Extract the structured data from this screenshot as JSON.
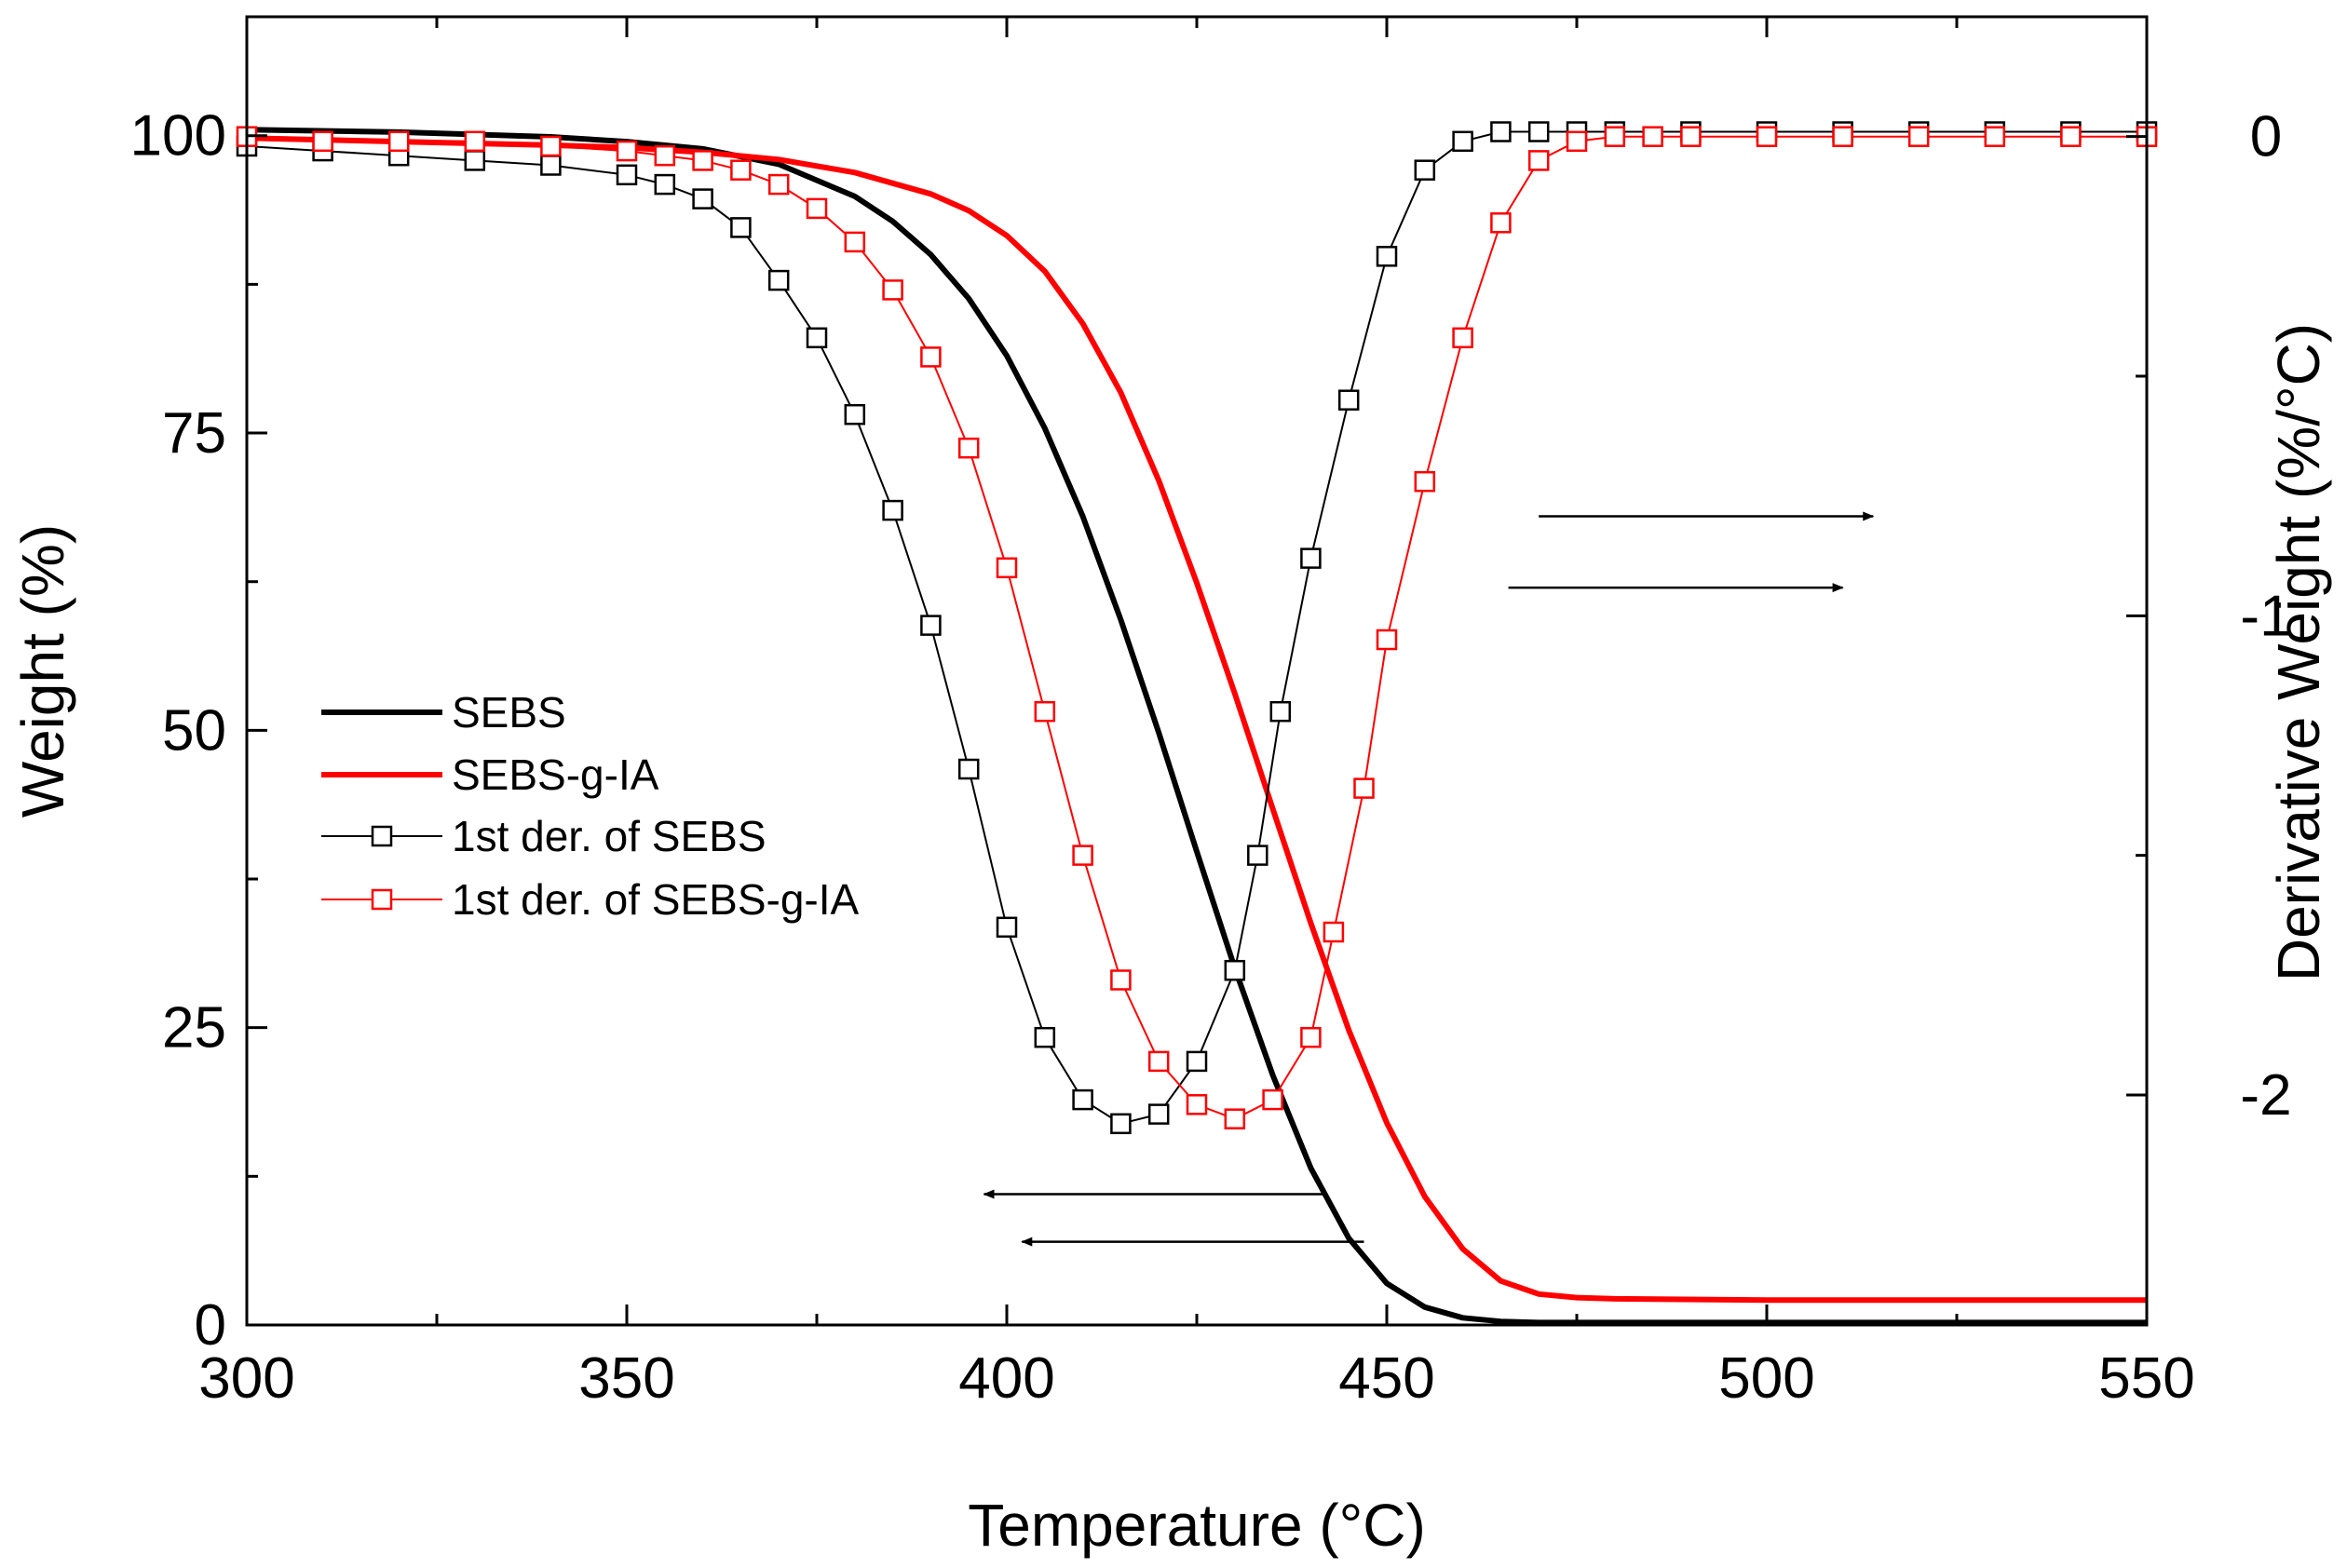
{
  "chart_data": {
    "type": "line",
    "xlabel": "Temperature (°C)",
    "ylabel": "Weight (%)",
    "y2label": "Derivative Weight (%/°C)",
    "xlim": [
      300,
      550
    ],
    "ylim": [
      0,
      110
    ],
    "y2lim": [
      -2.48,
      0.25
    ],
    "x_ticks": [
      "300",
      "350",
      "400",
      "450",
      "500",
      "550"
    ],
    "y_ticks": [
      "0",
      "25",
      "50",
      "75",
      "100"
    ],
    "y2_ticks": [
      "-2",
      "-1",
      "0"
    ],
    "x_tick_values": [
      300,
      350,
      400,
      450,
      500,
      550
    ],
    "y_tick_values": [
      0,
      25,
      50,
      75,
      100
    ],
    "y2_tick_values": [
      -2,
      -1,
      0
    ],
    "legend_position": "center-left",
    "colors": {
      "SEBS": "#000000",
      "SEBS-g-IA": "#ff0000"
    },
    "legend": [
      "SEBS",
      "SEBS-g-IA",
      "1st der. of SEBS",
      "1st der. of SEBS-g-IA"
    ],
    "series": [
      {
        "name": "SEBS",
        "axis": "left",
        "style": "line",
        "color": "#000000",
        "x": [
          300,
          320,
          340,
          350,
          360,
          370,
          380,
          385,
          390,
          395,
          400,
          405,
          410,
          415,
          420,
          425,
          430,
          435,
          440,
          445,
          450,
          455,
          460,
          465,
          470,
          480,
          500,
          550
        ],
        "y": [
          100.5,
          100.3,
          99.9,
          99.5,
          98.9,
          97.6,
          94.9,
          92.8,
          90.0,
          86.3,
          81.5,
          75.4,
          68.0,
          59.3,
          49.8,
          39.8,
          30.0,
          21.0,
          13.2,
          7.3,
          3.5,
          1.5,
          0.6,
          0.3,
          0.2,
          0.2,
          0.2,
          0.2
        ]
      },
      {
        "name": "SEBS-g-IA",
        "axis": "left",
        "style": "line",
        "color": "#ff0000",
        "x": [
          300,
          320,
          340,
          350,
          360,
          370,
          380,
          390,
          395,
          400,
          405,
          410,
          415,
          420,
          425,
          430,
          435,
          440,
          445,
          450,
          455,
          460,
          465,
          470,
          475,
          480,
          500,
          550
        ],
        "y": [
          99.8,
          99.5,
          99.2,
          99.0,
          98.6,
          98.0,
          96.9,
          95.1,
          93.7,
          91.6,
          88.6,
          84.2,
          78.4,
          71.0,
          62.4,
          53.1,
          43.4,
          33.8,
          24.8,
          17.0,
          10.8,
          6.4,
          3.7,
          2.6,
          2.3,
          2.2,
          2.1,
          2.1
        ]
      },
      {
        "name": "1st der. of SEBS",
        "axis": "right",
        "style": "markers-line",
        "marker": "open-square",
        "color": "#000000",
        "x": [
          300,
          310,
          320,
          330,
          340,
          350,
          355,
          360,
          365,
          370,
          375,
          380,
          385,
          390,
          395,
          400,
          405,
          410,
          415,
          420,
          425,
          430,
          433,
          436,
          440,
          445,
          450,
          455,
          460,
          465,
          470,
          475,
          480,
          490,
          500,
          510,
          520,
          530,
          540,
          550
        ],
        "y": [
          -0.02,
          -0.03,
          -0.04,
          -0.05,
          -0.06,
          -0.08,
          -0.1,
          -0.13,
          -0.19,
          -0.3,
          -0.42,
          -0.58,
          -0.78,
          -1.02,
          -1.32,
          -1.65,
          -1.88,
          -2.01,
          -2.06,
          -2.04,
          -1.93,
          -1.74,
          -1.5,
          -1.2,
          -0.88,
          -0.55,
          -0.25,
          -0.07,
          -0.01,
          0.01,
          0.01,
          0.01,
          0.01,
          0.01,
          0.01,
          0.01,
          0.01,
          0.01,
          0.01,
          0.01
        ]
      },
      {
        "name": "1st der. of SEBS-g-IA",
        "axis": "right",
        "style": "markers-line",
        "marker": "open-square",
        "color": "#ff0000",
        "x": [
          300,
          310,
          320,
          330,
          340,
          350,
          355,
          360,
          365,
          370,
          375,
          380,
          385,
          390,
          395,
          400,
          405,
          410,
          415,
          420,
          425,
          430,
          435,
          440,
          443,
          447,
          450,
          455,
          460,
          465,
          470,
          475,
          480,
          485,
          490,
          500,
          510,
          520,
          530,
          540,
          550
        ],
        "y": [
          0.0,
          -0.01,
          -0.01,
          -0.01,
          -0.02,
          -0.03,
          -0.04,
          -0.05,
          -0.07,
          -0.1,
          -0.15,
          -0.22,
          -0.32,
          -0.46,
          -0.65,
          -0.9,
          -1.2,
          -1.5,
          -1.76,
          -1.93,
          -2.02,
          -2.05,
          -2.01,
          -1.88,
          -1.66,
          -1.36,
          -1.05,
          -0.72,
          -0.42,
          -0.18,
          -0.05,
          -0.01,
          0.0,
          0.0,
          0.0,
          0.0,
          0.0,
          0.0,
          0.0,
          0.0,
          0.0
        ]
      }
    ],
    "annotations": [
      {
        "type": "arrow",
        "direction": "left",
        "x_start": 442,
        "x_end": 397,
        "y": 11
      },
      {
        "type": "arrow",
        "direction": "left",
        "x_start": 447,
        "x_end": 402,
        "y": 7
      },
      {
        "type": "arrow",
        "direction": "right",
        "x_start": 470,
        "x_end": 514,
        "y": 68
      },
      {
        "type": "arrow",
        "direction": "right",
        "x_start": 466,
        "x_end": 510,
        "y": 62
      }
    ]
  }
}
